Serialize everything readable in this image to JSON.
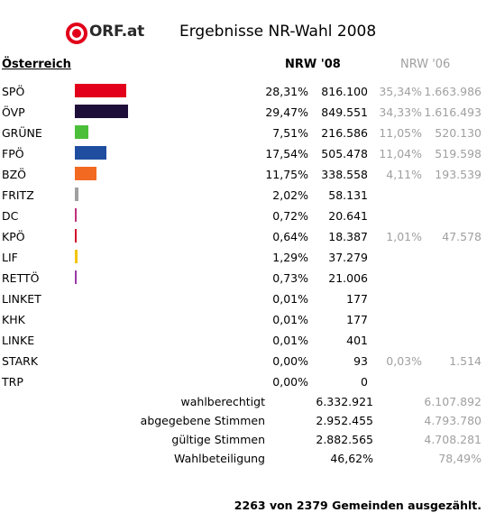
{
  "header": {
    "logo_text": "ORF.at",
    "title": "Ergebnisse NR-Wahl 2008"
  },
  "table": {
    "region": "Österreich",
    "col_2008": "NRW '08",
    "col_2006": "NRW '06"
  },
  "parties": [
    {
      "name": "SPÖ",
      "pct": "28,31%",
      "votes": "816.100",
      "pct06": "35,34%",
      "votes06": "1.663.986",
      "color": "#e2001a",
      "bar_fraction": 0.2831
    },
    {
      "name": "ÖVP",
      "pct": "29,47%",
      "votes": "849.551",
      "pct06": "34,33%",
      "votes06": "1.616.493",
      "color": "#1e0f3a",
      "bar_fraction": 0.2947
    },
    {
      "name": "GRÜNE",
      "pct": "7,51%",
      "votes": "216.586",
      "pct06": "11,05%",
      "votes06": "520.130",
      "color": "#4cbf3a",
      "bar_fraction": 0.0751
    },
    {
      "name": "FPÖ",
      "pct": "17,54%",
      "votes": "505.478",
      "pct06": "11,04%",
      "votes06": "519.598",
      "color": "#1f4ea0",
      "bar_fraction": 0.1754
    },
    {
      "name": "BZÖ",
      "pct": "11,75%",
      "votes": "338.558",
      "pct06": "4,11%",
      "votes06": "193.539",
      "color": "#f26a22",
      "bar_fraction": 0.1175
    },
    {
      "name": "FRITZ",
      "pct": "2,02%",
      "votes": "58.131",
      "pct06": "",
      "votes06": "",
      "color": "#a0a0a0",
      "bar_fraction": 0.0202
    },
    {
      "name": "DC",
      "pct": "0,72%",
      "votes": "20.641",
      "pct06": "",
      "votes06": "",
      "color": "#c0307a",
      "bar_fraction": 0.0072
    },
    {
      "name": "KPÖ",
      "pct": "0,64%",
      "votes": "18.387",
      "pct06": "1,01%",
      "votes06": "47.578",
      "color": "#d0102a",
      "bar_fraction": 0.0064
    },
    {
      "name": "LIF",
      "pct": "1,29%",
      "votes": "37.279",
      "pct06": "",
      "votes06": "",
      "color": "#f5c400",
      "bar_fraction": 0.0129
    },
    {
      "name": "RETTÖ",
      "pct": "0,73%",
      "votes": "21.006",
      "pct06": "",
      "votes06": "",
      "color": "#9a3aa8",
      "bar_fraction": 0.0073
    },
    {
      "name": "LINKET",
      "pct": "0,01%",
      "votes": "177",
      "pct06": "",
      "votes06": "",
      "color": "#999999",
      "bar_fraction": 0
    },
    {
      "name": "KHK",
      "pct": "0,01%",
      "votes": "177",
      "pct06": "",
      "votes06": "",
      "color": "#999999",
      "bar_fraction": 0
    },
    {
      "name": "LINKE",
      "pct": "0,01%",
      "votes": "401",
      "pct06": "",
      "votes06": "",
      "color": "#999999",
      "bar_fraction": 0
    },
    {
      "name": "STARK",
      "pct": "0,00%",
      "votes": "93",
      "pct06": "0,03%",
      "votes06": "1.514",
      "color": "#999999",
      "bar_fraction": 0
    },
    {
      "name": "TRP",
      "pct": "0,00%",
      "votes": "0",
      "pct06": "",
      "votes06": "",
      "color": "#999999",
      "bar_fraction": 0
    }
  ],
  "summary": [
    {
      "label": "wahlberechtigt",
      "v08": "6.332.921",
      "v06": "6.107.892"
    },
    {
      "label": "abgegebene Stimmen",
      "v08": "2.952.455",
      "v06": "4.793.780"
    },
    {
      "label": "gültige Stimmen",
      "v08": "2.882.565",
      "v06": "4.708.281"
    },
    {
      "label": "Wahlbeteiligung",
      "v08": "46,62%",
      "v06": "78,49%"
    }
  ],
  "footer": "2263 von 2379 Gemeinden ausgezählt."
}
